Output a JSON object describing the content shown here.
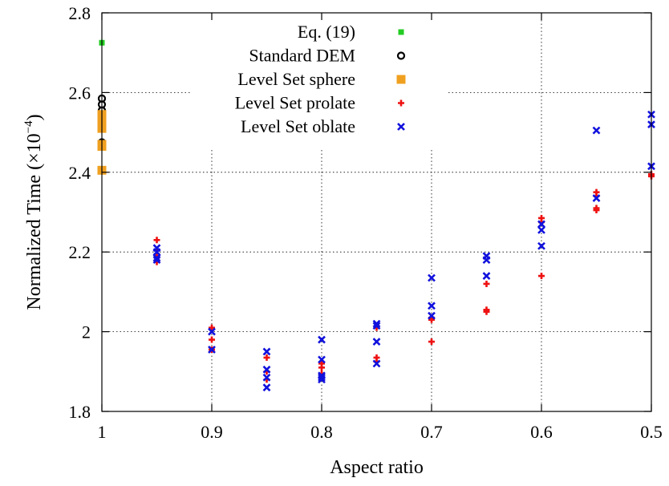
{
  "chart_data": {
    "type": "scatter",
    "xlabel": "Aspect ratio",
    "ylabel": "Normalized Time (×10",
    "ylabel_exp": "−4",
    "ylabel_close": ")",
    "xlim": [
      1,
      0.5
    ],
    "ylim": [
      1.8,
      2.8
    ],
    "x_ticks": [
      1,
      0.9,
      0.8,
      0.7,
      0.6,
      0.5
    ],
    "x_tick_labels": [
      "1",
      "0.9",
      "0.8",
      "0.7",
      "0.6",
      "0.5"
    ],
    "y_ticks": [
      1.8,
      2,
      2.2,
      2.4,
      2.6,
      2.8
    ],
    "y_tick_labels": [
      "1.8",
      "2",
      "2.2",
      "2.4",
      "2.6",
      "2.8"
    ],
    "grid": true,
    "legend_position": "top-center",
    "series": [
      {
        "name": "Eq. (19)",
        "color": "#22cc22",
        "marker": "filled-square-small",
        "points": [
          [
            1,
            2.725
          ]
        ]
      },
      {
        "name": "Standard DEM",
        "color": "#000000",
        "marker": "circle",
        "points": [
          [
            1,
            2.585
          ],
          [
            1,
            2.57
          ],
          [
            1,
            2.555
          ],
          [
            1,
            2.54
          ],
          [
            1,
            2.525
          ],
          [
            1,
            2.475
          ]
        ]
      },
      {
        "name": "Level Set sphere",
        "color": "#f0a020",
        "marker": "filled-square",
        "points": [
          [
            1,
            2.545
          ],
          [
            1,
            2.53
          ],
          [
            1,
            2.51
          ],
          [
            1,
            2.47
          ],
          [
            1,
            2.465
          ],
          [
            1,
            2.405
          ]
        ]
      },
      {
        "name": "Level Set prolate",
        "color": "#ee1111",
        "marker": "plus",
        "points": [
          [
            0.95,
            2.23
          ],
          [
            0.95,
            2.205
          ],
          [
            0.95,
            2.19
          ],
          [
            0.95,
            2.175
          ],
          [
            0.9,
            2.01
          ],
          [
            0.9,
            1.98
          ],
          [
            0.9,
            1.955
          ],
          [
            0.85,
            1.935
          ],
          [
            0.85,
            1.9
          ],
          [
            0.85,
            1.88
          ],
          [
            0.8,
            1.92
          ],
          [
            0.8,
            1.91
          ],
          [
            0.8,
            1.895
          ],
          [
            0.75,
            2.01
          ],
          [
            0.75,
            1.935
          ],
          [
            0.75,
            1.925
          ],
          [
            0.7,
            2.035
          ],
          [
            0.7,
            2.03
          ],
          [
            0.7,
            1.975
          ],
          [
            0.65,
            2.12
          ],
          [
            0.65,
            2.055
          ],
          [
            0.65,
            2.05
          ],
          [
            0.6,
            2.285
          ],
          [
            0.6,
            2.275
          ],
          [
            0.6,
            2.14
          ],
          [
            0.55,
            2.35
          ],
          [
            0.55,
            2.34
          ],
          [
            0.55,
            2.31
          ],
          [
            0.55,
            2.305
          ],
          [
            0.5,
            2.395
          ],
          [
            0.5,
            2.39
          ]
        ]
      },
      {
        "name": "Level Set oblate",
        "color": "#1111dd",
        "marker": "cross",
        "points": [
          [
            0.95,
            2.21
          ],
          [
            0.95,
            2.2
          ],
          [
            0.95,
            2.185
          ],
          [
            0.95,
            2.18
          ],
          [
            0.9,
            2.0
          ],
          [
            0.9,
            1.955
          ],
          [
            0.85,
            1.95
          ],
          [
            0.85,
            1.905
          ],
          [
            0.85,
            1.885
          ],
          [
            0.85,
            1.86
          ],
          [
            0.8,
            1.98
          ],
          [
            0.8,
            1.93
          ],
          [
            0.8,
            1.89
          ],
          [
            0.8,
            1.885
          ],
          [
            0.8,
            1.88
          ],
          [
            0.75,
            2.02
          ],
          [
            0.75,
            2.015
          ],
          [
            0.75,
            1.975
          ],
          [
            0.75,
            1.92
          ],
          [
            0.7,
            2.135
          ],
          [
            0.7,
            2.065
          ],
          [
            0.7,
            2.04
          ],
          [
            0.65,
            2.19
          ],
          [
            0.65,
            2.18
          ],
          [
            0.65,
            2.14
          ],
          [
            0.6,
            2.27
          ],
          [
            0.6,
            2.255
          ],
          [
            0.6,
            2.215
          ],
          [
            0.55,
            2.505
          ],
          [
            0.55,
            2.335
          ],
          [
            0.5,
            2.545
          ],
          [
            0.5,
            2.52
          ],
          [
            0.5,
            2.415
          ]
        ]
      }
    ]
  }
}
